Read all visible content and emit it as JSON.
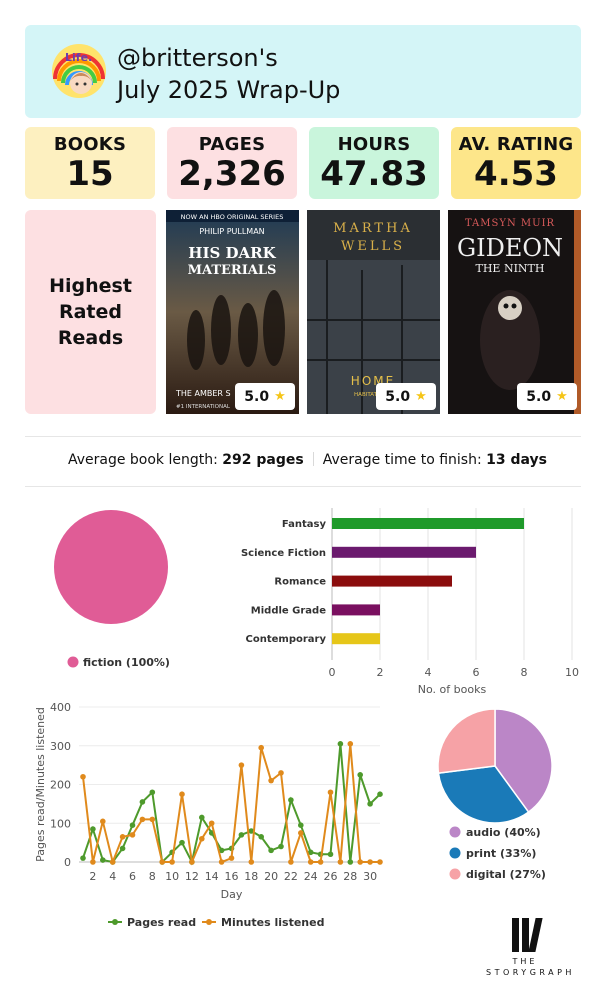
{
  "header": {
    "handle": "@britterson's",
    "subtitle": "July 2025 Wrap-Up",
    "avatar_text": "Life."
  },
  "stats": [
    {
      "label": "BOOKS",
      "value": "15",
      "color": "#fdf0c0"
    },
    {
      "label": "PAGES",
      "value": "2,326",
      "color": "#fde0e2"
    },
    {
      "label": "HOURS",
      "value": "47.83",
      "color": "#c9f5dc"
    },
    {
      "label": "AV. RATING",
      "value": "4.53",
      "color": "#fde68a"
    }
  ],
  "highest_rated": {
    "heading": "Highest Rated Reads",
    "books": [
      {
        "cover_top": "NOW AN HBO ORIGINAL SERIES",
        "author": "PHILIP PULLMAN",
        "title": "HIS DARK MATERIALS",
        "bottom": "THE AMBER S",
        "rating": "5.0"
      },
      {
        "author": "MARTHA WELLS",
        "title": "HOME",
        "bottom": "HABITAT, RAN",
        "rating": "5.0"
      },
      {
        "author": "TAMSYN MUIR",
        "title": "GIDEON",
        "subtitle": "THE NINTH",
        "rating": "5.0"
      }
    ]
  },
  "averages": {
    "length_label": "Average book length:",
    "length_value": "292 pages",
    "finish_label": "Average time to finish:",
    "finish_value": "13 days"
  },
  "chart_data": [
    {
      "type": "pie",
      "categories": [
        "fiction"
      ],
      "values": [
        100
      ],
      "legend": [
        "fiction (100%)"
      ],
      "colors": [
        "#e05c96"
      ]
    },
    {
      "type": "bar",
      "orientation": "horizontal",
      "categories": [
        "Fantasy",
        "Science Fiction",
        "Romance",
        "Middle Grade",
        "Contemporary"
      ],
      "values": [
        8,
        6,
        5,
        2,
        2
      ],
      "colors": [
        "#1f9a2a",
        "#6b1a6e",
        "#8b0d0d",
        "#7a1060",
        "#e6c619"
      ],
      "xlabel": "No. of books",
      "xlim": [
        0,
        10
      ],
      "xticks": [
        0,
        2,
        4,
        6,
        8,
        10
      ],
      "grid": true
    },
    {
      "type": "line",
      "xlabel": "Day",
      "ylabel": "Pages read/Minutes listened",
      "ylim": [
        0,
        400
      ],
      "yticks": [
        0,
        100,
        200,
        300,
        400
      ],
      "xticks": [
        2,
        4,
        6,
        8,
        10,
        12,
        14,
        16,
        18,
        20,
        22,
        24,
        26,
        28,
        30
      ],
      "x": [
        1,
        2,
        3,
        4,
        5,
        6,
        7,
        8,
        9,
        10,
        11,
        12,
        13,
        14,
        15,
        16,
        17,
        18,
        19,
        20,
        21,
        22,
        23,
        24,
        25,
        26,
        27,
        28,
        29,
        30,
        31
      ],
      "series": [
        {
          "name": "Pages read",
          "color": "#4e9a2c",
          "values": [
            10,
            85,
            5,
            0,
            35,
            95,
            155,
            180,
            0,
            25,
            50,
            0,
            115,
            75,
            30,
            35,
            70,
            80,
            65,
            30,
            40,
            160,
            95,
            25,
            20,
            20,
            305,
            0,
            225,
            150,
            175
          ]
        },
        {
          "name": "Minutes listened",
          "color": "#e08a1c",
          "values": [
            220,
            0,
            105,
            0,
            65,
            70,
            110,
            110,
            0,
            0,
            175,
            0,
            60,
            100,
            0,
            10,
            250,
            0,
            295,
            210,
            230,
            0,
            75,
            0,
            0,
            180,
            0,
            305,
            0,
            0,
            0
          ]
        }
      ],
      "legend_position": "bottom"
    },
    {
      "type": "pie",
      "categories": [
        "audio",
        "print",
        "digital"
      ],
      "values": [
        40,
        33,
        27
      ],
      "legend": [
        "audio (40%)",
        "print (33%)",
        "digital (27%)"
      ],
      "colors": [
        "#bb86c7",
        "#1a7ab8",
        "#f6a2a6"
      ]
    }
  ],
  "logo": {
    "the": "THE",
    "name": "STORYGRAPH"
  }
}
